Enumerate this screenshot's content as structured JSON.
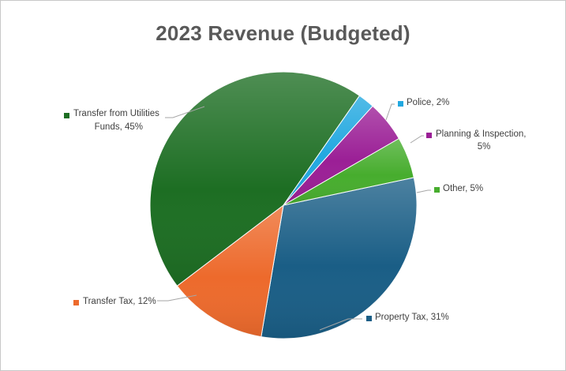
{
  "chart_data": {
    "type": "pie",
    "title": "2023 Revenue (Budgeted)",
    "slices": [
      {
        "label": "Property Tax",
        "value": 31,
        "text": "Property Tax, 31%",
        "color": "#1a5e86"
      },
      {
        "label": "Transfer Tax",
        "value": 12,
        "text": "Transfer Tax, 12%",
        "color": "#ed6a2c"
      },
      {
        "label": "Transfer from Utilities Funds",
        "value": 45,
        "text": "Transfer from Utilities Funds, 45%",
        "color": "#1d6e23"
      },
      {
        "label": "Police",
        "value": 2,
        "text": "Police, 2%",
        "color": "#22a8e0"
      },
      {
        "label": "Planning & Inspection",
        "value": 5,
        "text": "Planning & Inspection, 5%",
        "color": "#9b1f96"
      },
      {
        "label": "Other",
        "value": 5,
        "text": "Other, 5%",
        "color": "#47ad2e"
      }
    ],
    "legend": "none"
  }
}
